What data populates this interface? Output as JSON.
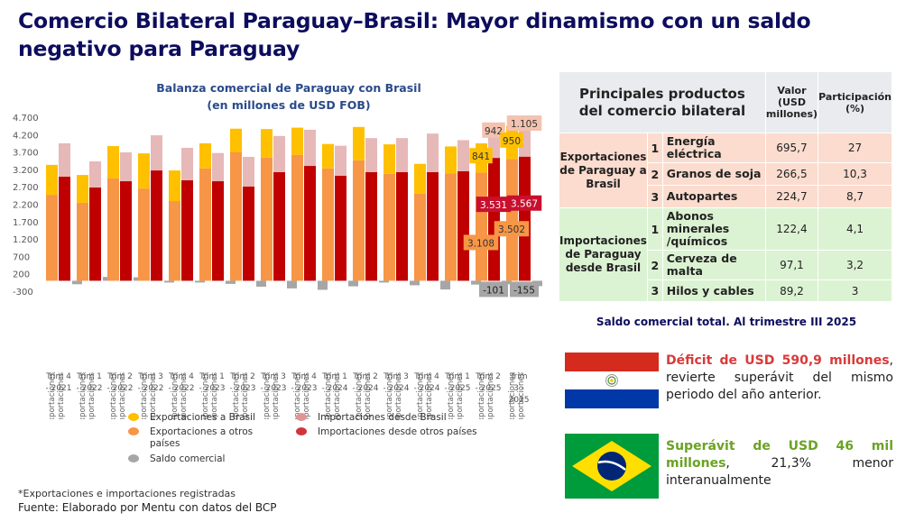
{
  "page": {
    "title": "Comercio Bilateral Paraguay–Brasil: Mayor dinamismo con un saldo negativo para Paraguay",
    "footnote": "*Exportaciones e importaciones registradas",
    "source": "Fuente: Elaborado por Mentu con datos del BCP"
  },
  "colors": {
    "exp_brasil": "#ffc000",
    "exp_otros": "#f79646",
    "imp_brasil": "#e6b8b7",
    "imp_otros": "#c00000",
    "saldo": "#a6a6a6",
    "title": "#0d0d5e"
  },
  "chart_data": {
    "type": "bar",
    "subtype": "stacked-grouped",
    "title": "Balanza comercial de Paraguay con Brasil",
    "subtitle": "(en millones de USD FOB)",
    "xlabel": "",
    "ylabel": "",
    "ylim": [
      -300,
      4700
    ],
    "yticks": [
      4700,
      4200,
      3700,
      3200,
      2700,
      2200,
      1700,
      1200,
      700,
      200,
      -300
    ],
    "ytick_labels": [
      "4.700",
      "4.200",
      "3.700",
      "3.200",
      "2.700",
      "2.200",
      "1.700",
      "1.200",
      "700",
      "200",
      "-300"
    ],
    "grid": false,
    "legend_position": "bottom",
    "bar_sublabels": [
      "Exportaciones",
      "Importaciones"
    ],
    "categories": [
      "Trim 4 - 2021",
      "Trim 1 - 2022",
      "Trim 2 - 2022",
      "Trim 3 - 2022",
      "Trim 4 - 2022",
      "Trim 1 - 2023",
      "Trim 2 - 2023",
      "Trim 3 - 2023",
      "Trim 4 - 2023",
      "Trim 1 - 2024",
      "Trim 2 - 2024",
      "Trim 3 - 2024",
      "Trim 4 - 2024",
      "Trim 1 - 2025",
      "Trim 2 - 2025",
      "Trim 3 - 2025"
    ],
    "series": [
      {
        "name": "Exportaciones a otros países",
        "stack": "Exportaciones",
        "color_key": "exp_otros",
        "values": [
          2470,
          2240,
          2940,
          2650,
          2290,
          3230,
          3690,
          3540,
          3620,
          3230,
          3460,
          3070,
          2500,
          3080,
          3108,
          3502
        ]
      },
      {
        "name": "Exportaciones a Brasil",
        "stack": "Exportaciones",
        "color_key": "exp_brasil",
        "values": [
          860,
          800,
          930,
          1010,
          880,
          720,
          680,
          820,
          780,
          700,
          960,
          850,
          860,
          780,
          841,
          950
        ]
      },
      {
        "name": "Importaciones desde otros países",
        "stack": "Importaciones",
        "color_key": "imp_otros",
        "values": [
          2990,
          2680,
          2860,
          3170,
          2890,
          2860,
          2710,
          3120,
          3300,
          3020,
          3120,
          3120,
          3120,
          3150,
          3531,
          3567
        ]
      },
      {
        "name": "Importaciones desde Brasil",
        "stack": "Importaciones",
        "color_key": "imp_brasil",
        "values": [
          960,
          750,
          830,
          1010,
          930,
          810,
          850,
          1040,
          1040,
          860,
          980,
          980,
          1110,
          890,
          942,
          1105
        ]
      },
      {
        "name": "Saldo comercial",
        "stack": "Saldo",
        "color_key": "saldo",
        "values": [
          -100,
          110,
          100,
          0,
          -50,
          -90,
          -170,
          -220,
          -260,
          -160,
          -20,
          -130,
          -250,
          -110,
          -101,
          -155
        ]
      }
    ],
    "data_labels": [
      {
        "category": "Trim 2 - 2025",
        "series": "Exportaciones a otros países",
        "text": "3.108"
      },
      {
        "category": "Trim 2 - 2025",
        "series": "Exportaciones a Brasil",
        "text": "841"
      },
      {
        "category": "Trim 2 - 2025",
        "series": "Importaciones desde otros países",
        "text": "3.531"
      },
      {
        "category": "Trim 2 - 2025",
        "series": "Importaciones desde Brasil",
        "text": "942"
      },
      {
        "category": "Trim 2 - 2025",
        "series": "Saldo comercial",
        "text": "-101"
      },
      {
        "category": "Trim 3 - 2025",
        "series": "Exportaciones a otros países",
        "text": "3.502"
      },
      {
        "category": "Trim 3 - 2025",
        "series": "Exportaciones a Brasil",
        "text": "950"
      },
      {
        "category": "Trim 3 - 2025",
        "series": "Importaciones desde otros países",
        "text": "3.567"
      },
      {
        "category": "Trim 3 - 2025",
        "series": "Importaciones desde Brasil",
        "text": "1.105"
      },
      {
        "category": "Trim 3 - 2025",
        "series": "Saldo comercial",
        "text": "-155"
      }
    ]
  },
  "legend": [
    {
      "label": "Exportaciones a Brasil",
      "color_key": "exp_brasil"
    },
    {
      "label": "Exportaciones a otros países",
      "color_key": "exp_otros"
    },
    {
      "label": "Saldo comercial",
      "color_key": "saldo"
    },
    {
      "label": "Importaciones desde Brasil",
      "color_key": "imp_brasil"
    },
    {
      "label": "Importaciones desde otros países",
      "color_key": "imp_otros"
    }
  ],
  "table": {
    "header": {
      "title": "Principales productos del comercio bilateral",
      "value": "Valor (USD millones)",
      "share": "Participación (%)"
    },
    "groups": [
      {
        "label": "Exportaciones de Paraguay a Brasil",
        "rows": [
          {
            "rank": "1",
            "product": "Energía eléctrica",
            "value": "695,7",
            "share": "27"
          },
          {
            "rank": "2",
            "product": "Granos de soja",
            "value": "266,5",
            "share": "10,3"
          },
          {
            "rank": "3",
            "product": "Autopartes",
            "value": "224,7",
            "share": "8,7"
          }
        ]
      },
      {
        "label": "Importaciones de Paraguay desde Brasil",
        "rows": [
          {
            "rank": "1",
            "product": "Abonos minerales /químicos",
            "value": "122,4",
            "share": "4,1"
          },
          {
            "rank": "2",
            "product": "Cerveza de malta",
            "value": "97,1",
            "share": "3,2"
          },
          {
            "rank": "3",
            "product": "Hilos y cables",
            "value": "89,2",
            "share": "3"
          }
        ]
      }
    ]
  },
  "saldo": {
    "title": "Saldo comercial total. Al trimestre III 2025",
    "paraguay": {
      "flag": "paraguay-flag",
      "highlight": "Déficit de USD 590,9 millones",
      "rest": ", revierte superávit del mismo periodo del año anterior."
    },
    "brasil": {
      "flag": "brazil-flag",
      "highlight": "Superávit de USD 46 mil millones",
      "rest": ", 21,3% menor interanualmente"
    }
  }
}
